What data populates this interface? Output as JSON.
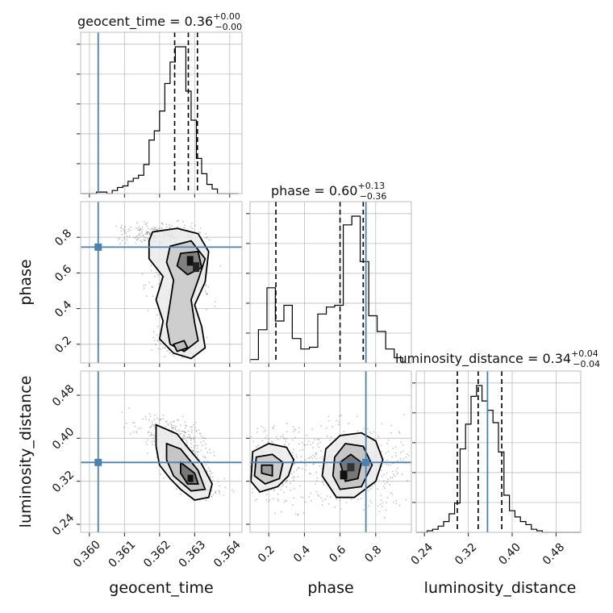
{
  "chart_data": {
    "type": "corner",
    "parameters": [
      "geocent_time",
      "phase",
      "luminosity_distance"
    ],
    "injection": {
      "geocent_time": 0.36025,
      "phase": 0.745,
      "luminosity_distance": 0.355
    },
    "ranges": {
      "geocent_time": [
        0.35975,
        0.36435
      ],
      "phase": [
        0.095,
        1.0
      ],
      "luminosity_distance": [
        0.225,
        0.525
      ]
    },
    "ticks": {
      "geocent_time": [
        0.36,
        0.361,
        0.362,
        0.363,
        0.364
      ],
      "phase": [
        0.2,
        0.4,
        0.6,
        0.8
      ],
      "luminosity_distance": [
        0.24,
        0.32,
        0.4,
        0.48
      ]
    },
    "tick_labels": {
      "geocent_time": [
        "0.360",
        "0.361",
        "0.362",
        "0.363",
        "0.364"
      ],
      "phase": [
        "0.2",
        "0.4",
        "0.6",
        "0.8"
      ],
      "luminosity_distance": [
        "0.24",
        "0.32",
        "0.40",
        "0.48"
      ]
    },
    "axis_labels": {
      "geocent_time": "geocent_time",
      "phase": "phase",
      "luminosity_distance": "luminosity_distance"
    },
    "titles": [
      {
        "param": "geocent_time",
        "prefix": "geocent_time = ",
        "value": "0.36",
        "plus": "+0.00",
        "minus": "−0.00"
      },
      {
        "param": "phase",
        "prefix": "phase = ",
        "value": "0.60",
        "plus": "+0.13",
        "minus": "−0.36"
      },
      {
        "param": "luminosity_distance",
        "prefix": "luminosity_distance = ",
        "value": "0.34",
        "plus": "+0.04",
        "minus": "−0.04"
      }
    ],
    "histograms": {
      "geocent_time": {
        "bin_edges": [
          0.35975,
          0.3599,
          0.36005,
          0.3602,
          0.36035,
          0.3605,
          0.36065,
          0.3608,
          0.36095,
          0.3611,
          0.36125,
          0.3614,
          0.36155,
          0.3617,
          0.36185,
          0.362,
          0.36215,
          0.3623,
          0.36245,
          0.3626,
          0.36275,
          0.3629,
          0.36305,
          0.3632,
          0.36335,
          0.3635,
          0.36365,
          0.3638,
          0.36395,
          0.3641,
          0.36425
        ],
        "counts": [
          0,
          0,
          0,
          0.01,
          0.01,
          0.0,
          0.02,
          0.04,
          0.05,
          0.08,
          0.1,
          0.12,
          0.19,
          0.35,
          0.41,
          0.54,
          0.72,
          0.86,
          0.96,
          0.96,
          0.67,
          0.48,
          0.23,
          0.13,
          0.06,
          0.03,
          0.0,
          0.0,
          0.0,
          0.0
        ],
        "quantiles": [
          0.36243,
          0.36282,
          0.36308
        ]
      },
      "phase": {
        "bin_edges": [
          0.095,
          0.142,
          0.19,
          0.237,
          0.285,
          0.332,
          0.38,
          0.428,
          0.475,
          0.523,
          0.57,
          0.618,
          0.666,
          0.713,
          0.761,
          0.808,
          0.856,
          0.904,
          0.951,
          1.0
        ],
        "counts": [
          0.02,
          0.19,
          0.43,
          0.24,
          0.33,
          0.14,
          0.08,
          0.09,
          0.28,
          0.32,
          0.33,
          0.79,
          0.84,
          0.58,
          0.27,
          0.18,
          0.08,
          0.03,
          0.0
        ],
        "quantiles": [
          0.24,
          0.6,
          0.73
        ]
      },
      "luminosity_distance": {
        "bin_edges": [
          0.225,
          0.235,
          0.245,
          0.255,
          0.265,
          0.275,
          0.285,
          0.295,
          0.305,
          0.315,
          0.325,
          0.335,
          0.345,
          0.355,
          0.365,
          0.375,
          0.385,
          0.395,
          0.405,
          0.415,
          0.425,
          0.435,
          0.445,
          0.455,
          0.465,
          0.475,
          0.485,
          0.495,
          0.505,
          0.515,
          0.525
        ],
        "counts": [
          0,
          0.0,
          0.01,
          0.02,
          0.04,
          0.07,
          0.12,
          0.19,
          0.54,
          0.7,
          0.88,
          0.95,
          0.85,
          0.79,
          0.71,
          0.52,
          0.24,
          0.14,
          0.1,
          0.07,
          0.05,
          0.02,
          0.01,
          0.0,
          0.0,
          0.0,
          0.0,
          0.0,
          0.0,
          0.0
        ],
        "quantiles": [
          0.3,
          0.338,
          0.381
        ]
      }
    },
    "contours_2d": {
      "phase_vs_geocent_time": {
        "outer": [
          [
            0.3618,
            0.83
          ],
          [
            0.3625,
            0.85
          ],
          [
            0.3631,
            0.82
          ],
          [
            0.3634,
            0.72
          ],
          [
            0.3633,
            0.55
          ],
          [
            0.363,
            0.42
          ],
          [
            0.3632,
            0.3
          ],
          [
            0.3633,
            0.18
          ],
          [
            0.3629,
            0.12
          ],
          [
            0.3624,
            0.15
          ],
          [
            0.362,
            0.23
          ],
          [
            0.3621,
            0.33
          ],
          [
            0.3619,
            0.45
          ],
          [
            0.3621,
            0.58
          ],
          [
            0.3617,
            0.68
          ],
          [
            0.3617,
            0.78
          ]
        ],
        "middle": [
          [
            0.3623,
            0.75
          ],
          [
            0.3629,
            0.78
          ],
          [
            0.3633,
            0.68
          ],
          [
            0.3631,
            0.56
          ],
          [
            0.3629,
            0.45
          ],
          [
            0.363,
            0.32
          ],
          [
            0.3631,
            0.22
          ],
          [
            0.3627,
            0.16
          ],
          [
            0.3623,
            0.2
          ],
          [
            0.3622,
            0.31
          ],
          [
            0.3623,
            0.43
          ],
          [
            0.3624,
            0.56
          ],
          [
            0.3622,
            0.66
          ]
        ],
        "inner": [
          [
            0.3626,
            0.71
          ],
          [
            0.3631,
            0.72
          ],
          [
            0.3632,
            0.63
          ],
          [
            0.3628,
            0.59
          ],
          [
            0.3625,
            0.64
          ]
        ],
        "inner2": [
          [
            0.3624,
            0.2
          ],
          [
            0.3627,
            0.22
          ],
          [
            0.3628,
            0.18
          ],
          [
            0.3625,
            0.16
          ]
        ]
      },
      "luminosity_distance_vs_geocent_time": {
        "outer": [
          [
            0.3619,
            0.425
          ],
          [
            0.3625,
            0.408
          ],
          [
            0.3628,
            0.383
          ],
          [
            0.3632,
            0.352
          ],
          [
            0.3635,
            0.315
          ],
          [
            0.3634,
            0.29
          ],
          [
            0.363,
            0.285
          ],
          [
            0.3626,
            0.305
          ],
          [
            0.3623,
            0.325
          ],
          [
            0.362,
            0.35
          ],
          [
            0.3619,
            0.385
          ]
        ],
        "middle": [
          [
            0.3622,
            0.39
          ],
          [
            0.3626,
            0.38
          ],
          [
            0.3631,
            0.34
          ],
          [
            0.3633,
            0.305
          ],
          [
            0.3629,
            0.302
          ],
          [
            0.3624,
            0.33
          ],
          [
            0.3622,
            0.36
          ]
        ],
        "inner": [
          [
            0.3626,
            0.355
          ],
          [
            0.363,
            0.335
          ],
          [
            0.3631,
            0.315
          ],
          [
            0.3628,
            0.315
          ],
          [
            0.3626,
            0.335
          ]
        ]
      },
      "luminosity_distance_vs_phase": {
        "left_outer": [
          [
            0.11,
            0.375
          ],
          [
            0.2,
            0.39
          ],
          [
            0.3,
            0.383
          ],
          [
            0.34,
            0.36
          ],
          [
            0.31,
            0.33
          ],
          [
            0.25,
            0.31
          ],
          [
            0.15,
            0.3
          ],
          [
            0.1,
            0.32
          ]
        ],
        "left_middle": [
          [
            0.13,
            0.365
          ],
          [
            0.22,
            0.37
          ],
          [
            0.28,
            0.355
          ],
          [
            0.26,
            0.325
          ],
          [
            0.18,
            0.315
          ],
          [
            0.12,
            0.33
          ]
        ],
        "left_inner": [
          [
            0.16,
            0.35
          ],
          [
            0.22,
            0.35
          ],
          [
            0.22,
            0.33
          ],
          [
            0.16,
            0.335
          ]
        ],
        "right_outer": [
          [
            0.52,
            0.38
          ],
          [
            0.6,
            0.405
          ],
          [
            0.72,
            0.41
          ],
          [
            0.8,
            0.395
          ],
          [
            0.84,
            0.36
          ],
          [
            0.8,
            0.32
          ],
          [
            0.68,
            0.29
          ],
          [
            0.58,
            0.29
          ],
          [
            0.5,
            0.33
          ]
        ],
        "right_middle": [
          [
            0.57,
            0.365
          ],
          [
            0.63,
            0.39
          ],
          [
            0.73,
            0.385
          ],
          [
            0.78,
            0.35
          ],
          [
            0.72,
            0.31
          ],
          [
            0.6,
            0.305
          ],
          [
            0.56,
            0.33
          ]
        ],
        "right_inner": [
          [
            0.6,
            0.355
          ],
          [
            0.66,
            0.37
          ],
          [
            0.72,
            0.355
          ],
          [
            0.7,
            0.325
          ],
          [
            0.63,
            0.32
          ]
        ]
      }
    },
    "grid": true
  }
}
